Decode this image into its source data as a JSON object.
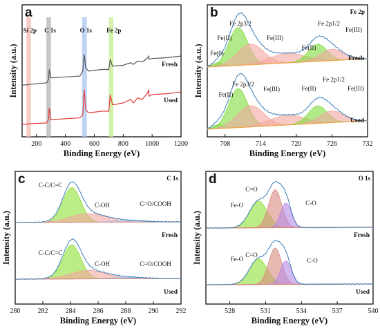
{
  "chart_data": [
    {
      "id": "a",
      "type": "line",
      "panel_letter": "a",
      "xlabel": "Binding Energy (eV)",
      "ylabel": "Intensity (a.u.)",
      "xlim": [
        100,
        1200
      ],
      "xticks": [
        200,
        400,
        600,
        800,
        1000,
        1200
      ],
      "xreversed": false,
      "highlight_bands": [
        {
          "label": "Si 2p",
          "from": 130,
          "to": 160,
          "color": "#f4b8b0"
        },
        {
          "label": "C 1s",
          "from": 268,
          "to": 300,
          "color": "#b4b4b4"
        },
        {
          "label": "O 1s",
          "from": 515,
          "to": 548,
          "color": "#a9c4f2"
        },
        {
          "label": "Fe 2p",
          "from": 700,
          "to": 732,
          "color": "#c6ee8f"
        }
      ],
      "series": [
        {
          "name": "Fresh",
          "color": "#555555",
          "x": [
            100,
            150,
            270,
            283,
            288,
            300,
            400,
            500,
            520,
            530,
            540,
            560,
            650,
            700,
            710,
            725,
            740,
            800,
            850,
            870,
            900,
            930,
            950,
            970,
            975,
            980,
            1000,
            1100,
            1200
          ],
          "y": [
            0.55,
            0.56,
            0.58,
            0.62,
            0.74,
            0.64,
            0.65,
            0.66,
            0.72,
            0.92,
            0.76,
            0.72,
            0.74,
            0.74,
            0.86,
            0.78,
            0.78,
            0.79,
            0.82,
            0.8,
            0.84,
            0.83,
            0.85,
            0.88,
            0.9,
            0.86,
            0.87,
            0.88,
            0.9
          ]
        },
        {
          "name": "Used",
          "color": "#e03a36",
          "x": [
            100,
            150,
            270,
            283,
            288,
            300,
            400,
            500,
            520,
            530,
            540,
            560,
            650,
            700,
            710,
            725,
            740,
            800,
            850,
            870,
            900,
            930,
            950,
            970,
            975,
            980,
            1000,
            1100,
            1200
          ],
          "y": [
            0.08,
            0.09,
            0.1,
            0.14,
            0.28,
            0.14,
            0.15,
            0.16,
            0.2,
            0.5,
            0.26,
            0.22,
            0.24,
            0.24,
            0.44,
            0.32,
            0.32,
            0.34,
            0.38,
            0.34,
            0.4,
            0.38,
            0.42,
            0.46,
            0.5,
            0.42,
            0.44,
            0.45,
            0.47
          ]
        }
      ]
    },
    {
      "id": "b",
      "type": "line",
      "panel_letter": "b",
      "corner_label": "Fe 2p",
      "xlabel": "Binding Energy (eV)",
      "ylabel": "Intensity (a.u.)",
      "xlim": [
        705,
        732
      ],
      "xticks": [
        708,
        714,
        720,
        726,
        732
      ],
      "xreversed": false,
      "series_labels": [
        "Fresh",
        "Used"
      ],
      "annotations_fresh": [
        "Fe 2p3/2",
        "Fe(II)",
        "Fe(III)",
        "Fe(0)",
        "Fe(II)",
        "Fe 2p1/2",
        "Fe(III)"
      ],
      "annotations_used": [
        "Fe 2p3/2",
        "Fe(II)",
        "Fe(III)",
        "Fe(II)",
        "Fe 2p1/2",
        "Fe(III)"
      ],
      "components": [
        {
          "name": "Fe(0)",
          "center": 706.8,
          "height": 0.1,
          "width": 0.9,
          "color": "#8fd36a"
        },
        {
          "name": "Fe(II) 2p3/2",
          "center": 710.2,
          "height": 1.0,
          "width": 1.6,
          "color": "#7fdc3a"
        },
        {
          "name": "Fe(III) 2p3/2",
          "center": 712.3,
          "height": 0.55,
          "width": 2.2,
          "color": "#f2a7a0"
        },
        {
          "name": "Satellite",
          "center": 718.5,
          "height": 0.25,
          "width": 3.0,
          "color": "#f2a7a0"
        },
        {
          "name": "Fe(II) 2p1/2",
          "center": 723.6,
          "height": 0.45,
          "width": 1.6,
          "color": "#7fdc3a"
        },
        {
          "name": "Fe(III) 2p1/2",
          "center": 726.0,
          "height": 0.3,
          "width": 2.0,
          "color": "#f2a7a0"
        }
      ],
      "fit_color": "#f5a53c",
      "envelope_color": "#3a7db8"
    },
    {
      "id": "c",
      "type": "line",
      "panel_letter": "c",
      "corner_label": "C 1s",
      "xlabel": "Binding Energy (eV)",
      "ylabel": "Intensity (a.u.)",
      "xlim": [
        280,
        292
      ],
      "xticks": [
        280,
        282,
        284,
        286,
        288,
        290,
        292
      ],
      "xreversed": false,
      "series_labels": [
        "Fresh",
        "Used"
      ],
      "annotations": [
        "C-C/C=C",
        "C-OH",
        "C=O/COOH"
      ],
      "components": [
        {
          "name": "C-C/C=C",
          "center": 284.1,
          "height": 1.0,
          "width": 0.65,
          "color": "#8fe034"
        },
        {
          "name": "C-OH",
          "center": 285.3,
          "height": 0.25,
          "width": 1.3,
          "color": "#f2a7a0"
        },
        {
          "name": "C=O/COOH",
          "center": 288.2,
          "height": 0.04,
          "width": 1.2,
          "color": "#9ec4f0"
        }
      ],
      "fit_color": "#e67e6a",
      "envelope_color": "#3a7db8"
    },
    {
      "id": "d",
      "type": "line",
      "panel_letter": "d",
      "corner_label": "O 1s",
      "xlabel": "Binding Energy (eV)",
      "ylabel": "Intensity (a.u.)",
      "xlim": [
        526,
        540
      ],
      "xticks": [
        528,
        531,
        534,
        537,
        540
      ],
      "xreversed": false,
      "series_labels": [
        "Fresh",
        "Used"
      ],
      "annotations": [
        "C=O",
        "Fe-O",
        "C-O"
      ],
      "components": [
        {
          "name": "Fe-O",
          "center": 530.4,
          "height": 0.7,
          "width": 0.75,
          "color": "#8fe034"
        },
        {
          "name": "C=O",
          "center": 531.8,
          "height": 1.0,
          "width": 0.55,
          "color": "#d98a80"
        },
        {
          "name": "C-O",
          "center": 532.7,
          "height": 0.65,
          "width": 0.45,
          "color": "#b58be8"
        }
      ],
      "fit_color": "#e67e6a",
      "envelope_color": "#3a7db8"
    }
  ]
}
